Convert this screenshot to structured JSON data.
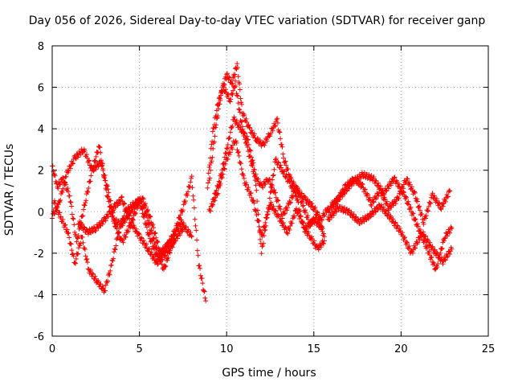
{
  "chart_data": {
    "type": "scatter",
    "title": "Day 056 of 2026, Sidereal Day-to-day VTEC variation (SDTVAR) for receiver ganp",
    "xlabel": "GPS time / hours",
    "ylabel": "SDTVAR / TECUs",
    "xlim": [
      0,
      25
    ],
    "ylim": [
      -6,
      8
    ],
    "xticks": [
      0,
      5,
      10,
      15,
      20,
      25
    ],
    "yticks": [
      -6,
      -4,
      -2,
      0,
      2,
      4,
      6,
      8
    ],
    "grid": true,
    "marker": "+",
    "color": "#ff0000",
    "series": [
      {
        "name": "trace-1",
        "x": [
          0,
          0.3,
          0.6,
          1.0,
          1.4,
          1.9,
          2.3,
          2.8,
          3.2,
          3.6,
          4.0,
          4.5,
          5.0,
          5.5,
          6.0,
          6.5,
          7.0,
          7.5,
          8.0,
          8.4,
          8.8
        ],
        "y": [
          2.2,
          1.2,
          1.6,
          0.8,
          -1.5,
          0.5,
          2.0,
          2.4,
          1.0,
          -0.6,
          -1.5,
          -0.6,
          0.5,
          -1.0,
          -2.2,
          -1.8,
          -1.0,
          0.2,
          1.6,
          -2.5,
          -4.3
        ]
      },
      {
        "name": "trace-2",
        "x": [
          0.1,
          0.5,
          0.9,
          1.3,
          1.7,
          2.1,
          2.6,
          3.0,
          3.4,
          3.8,
          4.2,
          4.7,
          5.2,
          5.7,
          6.2,
          6.8,
          7.4,
          8.0
        ],
        "y": [
          0.5,
          -0.3,
          -1.0,
          -2.5,
          -1.2,
          -2.8,
          -3.4,
          -3.8,
          -2.6,
          -1.0,
          0.0,
          0.4,
          0.6,
          -0.5,
          -2.0,
          -1.4,
          -0.5,
          -1.2
        ]
      },
      {
        "name": "trace-3",
        "x": [
          0,
          0.4,
          0.8,
          1.3,
          1.8,
          2.3,
          2.7,
          3.1,
          3.5,
          4.0,
          4.5,
          5.0,
          5.4,
          5.9,
          6.4,
          6.9,
          7.5
        ],
        "y": [
          -0.2,
          0.4,
          1.8,
          2.6,
          3.0,
          2.0,
          3.2,
          1.0,
          -0.4,
          -0.6,
          0.0,
          0.6,
          -0.2,
          -1.6,
          -2.8,
          -1.5,
          -0.8
        ]
      },
      {
        "name": "trace-4",
        "x": [
          1.5,
          2.0,
          2.5,
          3.0,
          3.5,
          4.0,
          4.5,
          5.0,
          5.5,
          6.0,
          6.5,
          7.0
        ],
        "y": [
          -0.5,
          -1.0,
          -0.8,
          -0.4,
          0.2,
          0.6,
          -0.5,
          -1.2,
          -1.8,
          -2.5,
          -2.0,
          -1.5
        ]
      },
      {
        "name": "trace-5",
        "x": [
          8.9,
          9.2,
          9.5,
          9.8,
          10.2,
          10.5,
          10.8,
          11.2,
          11.6,
          12.0,
          12.4,
          12.8,
          13.2,
          13.6,
          14.0,
          14.4,
          14.8,
          15.2,
          15.6
        ],
        "y": [
          1.2,
          3.8,
          5.2,
          6.0,
          5.4,
          6.2,
          4.5,
          3.0,
          1.8,
          1.2,
          1.6,
          0.8,
          -0.2,
          0.4,
          1.2,
          0.2,
          -0.6,
          -0.2,
          -1.2
        ]
      },
      {
        "name": "trace-6",
        "x": [
          9.0,
          9.4,
          9.7,
          10.0,
          10.3,
          10.6,
          10.9,
          11.3,
          11.7,
          12.1,
          12.5,
          12.9,
          13.3,
          13.7,
          14.1,
          14.5,
          15.0,
          15.4,
          15.8
        ],
        "y": [
          1.5,
          4.2,
          5.8,
          6.6,
          6.2,
          7.1,
          4.8,
          4.0,
          3.5,
          3.2,
          3.8,
          4.4,
          2.5,
          1.5,
          1.0,
          0.6,
          0.2,
          -0.4,
          0.2
        ]
      },
      {
        "name": "trace-7",
        "x": [
          9.2,
          9.6,
          10.0,
          10.4,
          10.8,
          11.2,
          11.6,
          12.0,
          12.4,
          12.8,
          13.2,
          13.6,
          14.0,
          14.4,
          14.8,
          15.2,
          15.6
        ],
        "y": [
          0.5,
          1.5,
          3.0,
          4.5,
          4.0,
          3.5,
          2.0,
          -2.0,
          0.2,
          2.5,
          2.0,
          1.4,
          0.8,
          -0.8,
          -1.2,
          -1.8,
          -1.4
        ]
      },
      {
        "name": "trace-8",
        "x": [
          9.0,
          9.5,
          10.0,
          10.5,
          11.0,
          11.5,
          12.0,
          12.5,
          13.0,
          13.5,
          14.0,
          14.5,
          15.0,
          15.5
        ],
        "y": [
          0.0,
          1.0,
          2.5,
          3.5,
          1.5,
          0.6,
          -1.2,
          0.4,
          -0.3,
          -1.0,
          0.1,
          -0.8,
          -0.4,
          -0.8
        ]
      },
      {
        "name": "trace-9",
        "x": [
          15.8,
          16.3,
          16.8,
          17.3,
          17.8,
          18.3,
          18.8,
          19.3,
          19.8,
          20.3,
          20.8,
          21.3,
          21.8,
          22.3,
          22.8
        ],
        "y": [
          0.0,
          0.5,
          1.2,
          1.6,
          1.2,
          0.4,
          1.0,
          0.2,
          0.6,
          1.6,
          0.8,
          -0.5,
          0.8,
          0.2,
          1.0
        ]
      },
      {
        "name": "trace-10",
        "x": [
          15.8,
          16.4,
          17.0,
          17.6,
          18.2,
          18.8,
          19.4,
          20.0,
          20.6,
          21.2,
          21.8,
          22.4,
          22.9
        ],
        "y": [
          -0.4,
          0.2,
          0.0,
          -0.5,
          -0.2,
          0.3,
          -0.3,
          -1.0,
          -2.0,
          -1.0,
          -1.8,
          -2.4,
          -1.8
        ]
      },
      {
        "name": "trace-11",
        "x": [
          16.0,
          16.6,
          17.2,
          17.8,
          18.4,
          19.0,
          19.6,
          20.2,
          20.8,
          21.4,
          22.0,
          22.5,
          22.9
        ],
        "y": [
          0.3,
          0.8,
          1.4,
          1.8,
          1.6,
          0.9,
          1.6,
          0.8,
          -0.4,
          -1.6,
          -2.8,
          -1.2,
          -0.8
        ]
      }
    ]
  }
}
